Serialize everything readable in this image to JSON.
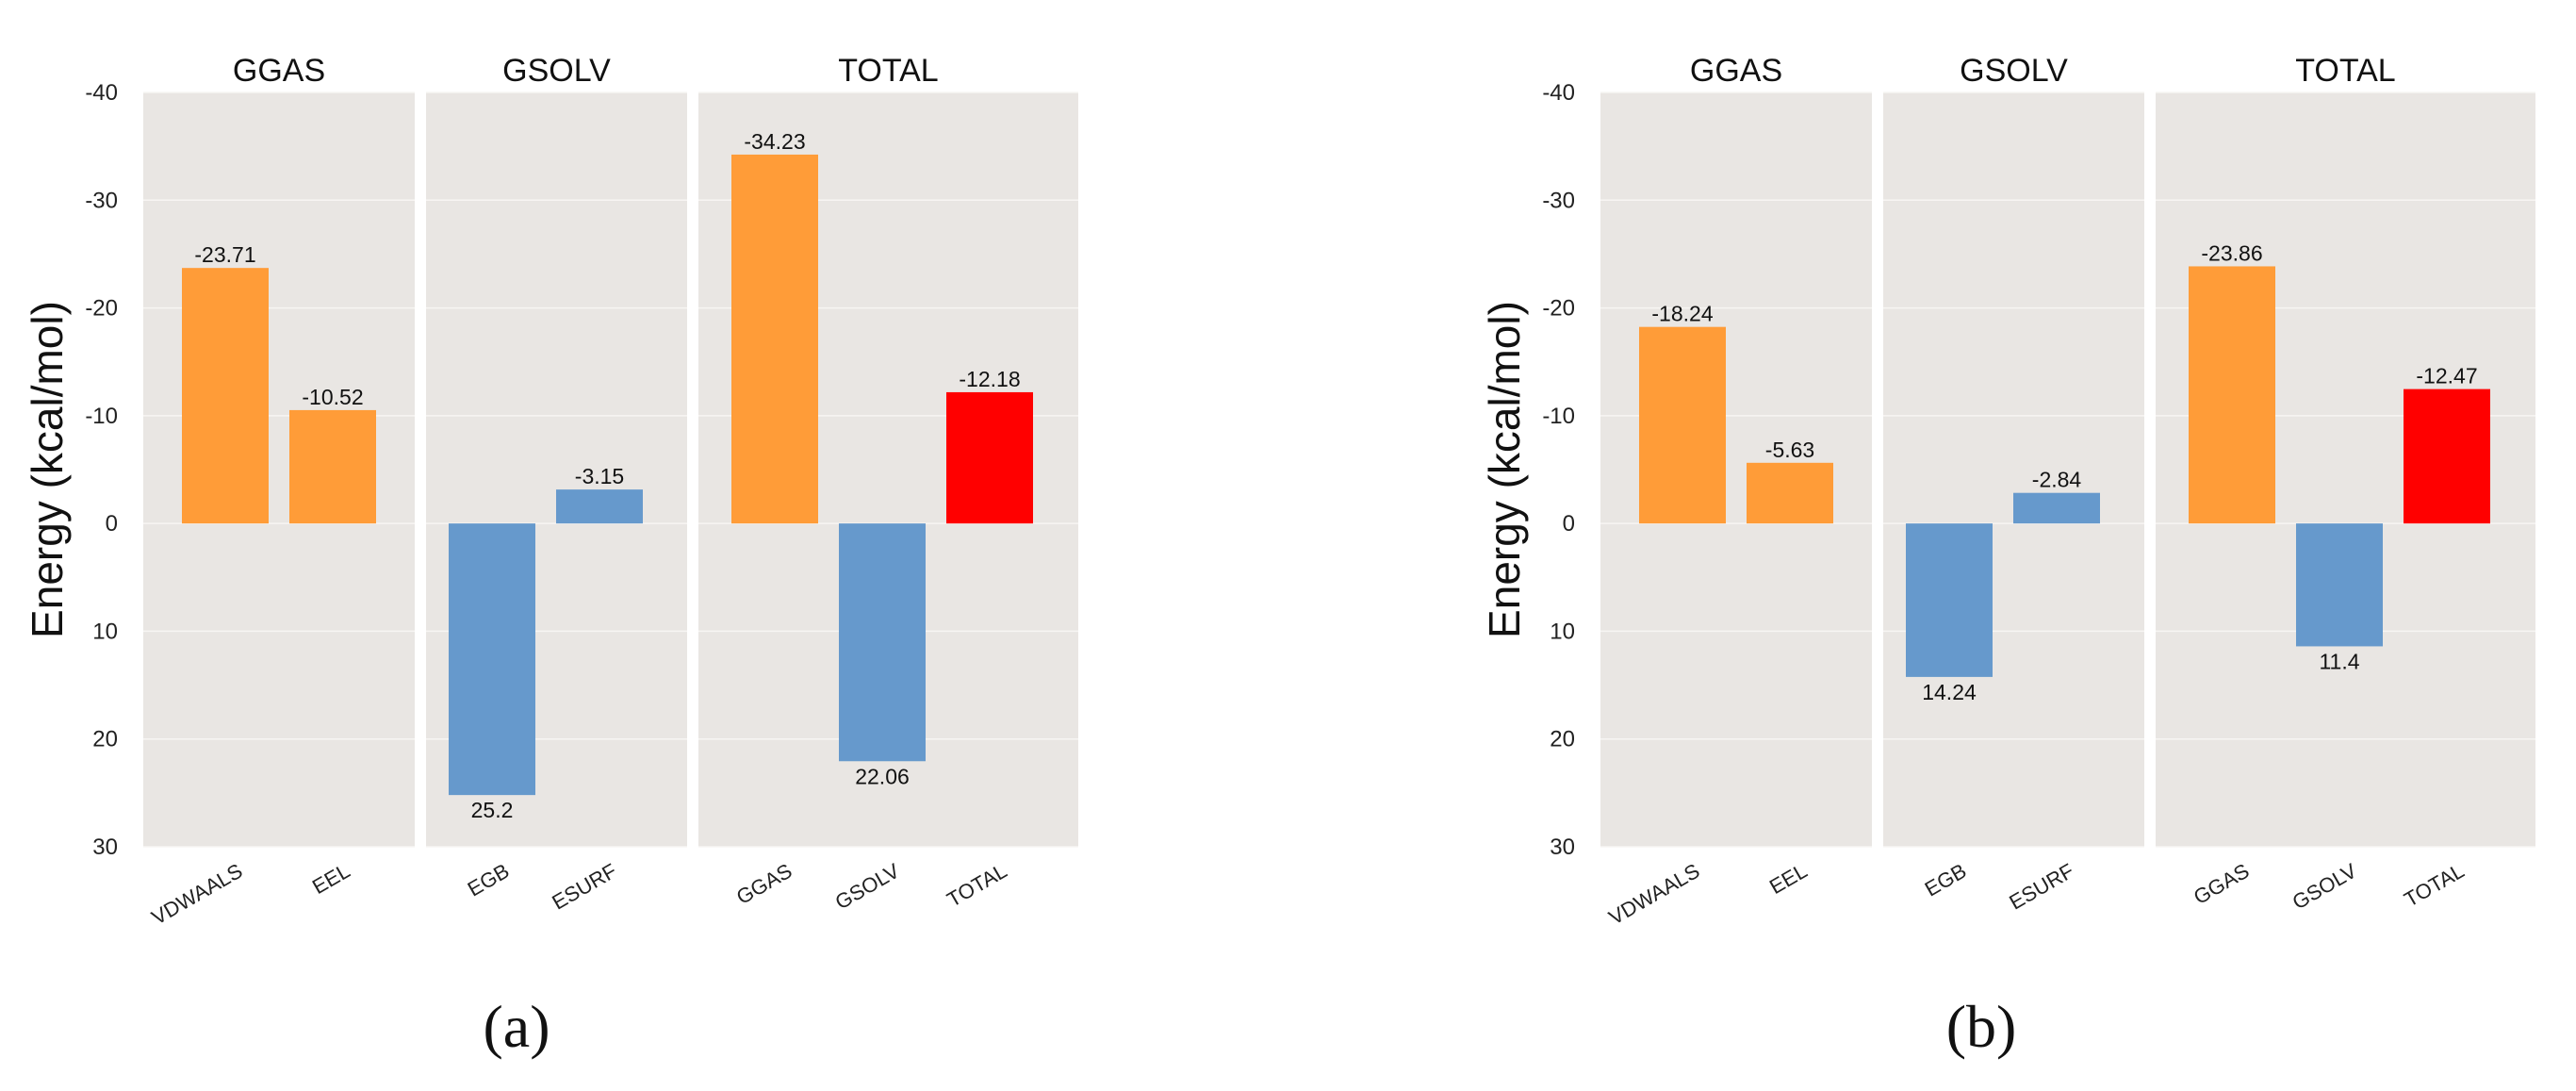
{
  "colors": {
    "panel_bg": "#E9E6E3",
    "grid": "#F7F5F3",
    "gas": "#FF9C38",
    "solv": "#6699CC",
    "total": "#FF0000"
  },
  "chart_data": [
    {
      "type": "bar",
      "id": "a",
      "sublabel": "(a)",
      "ylabel": "Energy (kcal/mol)",
      "ylim": [
        -40,
        30
      ],
      "yticks": [
        -40,
        -30,
        -20,
        -10,
        0,
        10,
        20,
        30
      ],
      "y_axis_inverted": true,
      "grid": true,
      "panels": [
        {
          "title": "GGAS",
          "categories": [
            "VDWAALS",
            "EEL"
          ],
          "values": [
            -23.71,
            -10.52
          ],
          "labels": [
            "-23.71",
            "-10.52"
          ],
          "colors": [
            "gas",
            "gas"
          ]
        },
        {
          "title": "GSOLV",
          "categories": [
            "EGB",
            "ESURF"
          ],
          "values": [
            25.2,
            -3.15
          ],
          "labels": [
            "25.2",
            "-3.15"
          ],
          "colors": [
            "solv",
            "solv"
          ]
        },
        {
          "title": "TOTAL",
          "categories": [
            "GGAS",
            "GSOLV",
            "TOTAL"
          ],
          "values": [
            -34.23,
            22.06,
            -12.18
          ],
          "labels": [
            "-34.23",
            "22.06",
            "-12.18"
          ],
          "colors": [
            "gas",
            "solv",
            "total"
          ]
        }
      ]
    },
    {
      "type": "bar",
      "id": "b",
      "sublabel": "(b)",
      "ylabel": "Energy (kcal/mol)",
      "ylim": [
        -40,
        30
      ],
      "yticks": [
        -40,
        -30,
        -20,
        -10,
        0,
        10,
        20,
        30
      ],
      "y_axis_inverted": true,
      "grid": true,
      "panels": [
        {
          "title": "GGAS",
          "categories": [
            "VDWAALS",
            "EEL"
          ],
          "values": [
            -18.24,
            -5.63
          ],
          "labels": [
            "-18.24",
            "-5.63"
          ],
          "colors": [
            "gas",
            "gas"
          ]
        },
        {
          "title": "GSOLV",
          "categories": [
            "EGB",
            "ESURF"
          ],
          "values": [
            14.24,
            -2.84
          ],
          "labels": [
            "14.24",
            "-2.84"
          ],
          "colors": [
            "solv",
            "solv"
          ]
        },
        {
          "title": "TOTAL",
          "categories": [
            "GGAS",
            "GSOLV",
            "TOTAL"
          ],
          "values": [
            -23.86,
            11.4,
            -12.47
          ],
          "labels": [
            "-23.86",
            "11.4",
            "-12.47"
          ],
          "colors": [
            "gas",
            "solv",
            "total"
          ]
        }
      ]
    }
  ]
}
